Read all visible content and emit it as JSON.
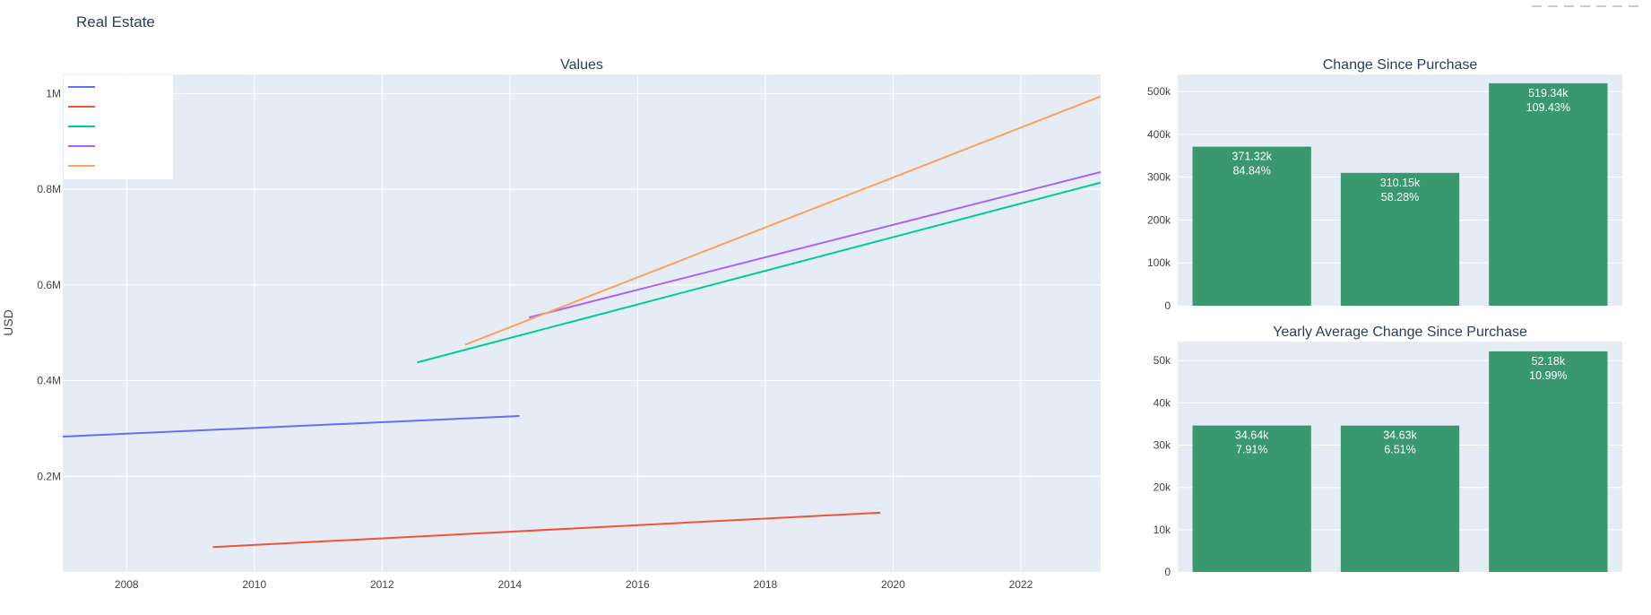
{
  "page": {
    "title": "Real Estate"
  },
  "colors": {
    "plot_bg": "#e5ecf6",
    "grid": "#ffffff",
    "bar": "#3a986f",
    "text": "#444444",
    "title": "#2a3f5f"
  },
  "chart_data": [
    {
      "type": "line",
      "title": "Values",
      "xlabel": "",
      "ylabel": "USD",
      "xlim": [
        2007.0,
        2023.25
      ],
      "ylim": [
        0,
        1040000
      ],
      "x_ticks": [
        2008,
        2010,
        2012,
        2014,
        2016,
        2018,
        2020,
        2022
      ],
      "x_tick_labels": [
        "2008",
        "2010",
        "2012",
        "2014",
        "2016",
        "2018",
        "2020",
        "2022"
      ],
      "y_ticks": [
        200000,
        400000,
        600000,
        800000,
        1000000
      ],
      "y_tick_labels": [
        "0.2M",
        "0.4M",
        "0.6M",
        "0.8M",
        "1M"
      ],
      "grid": true,
      "legend": "top-left",
      "series": [
        {
          "color": "#636efa",
          "x": [
            2007.0,
            2014.15
          ],
          "y": [
            283000,
            326000
          ]
        },
        {
          "color": "#ef553b",
          "x": [
            2009.35,
            2019.8
          ],
          "y": [
            52000,
            124000
          ]
        },
        {
          "color": "#00cc96",
          "x": [
            2012.55,
            2023.25
          ],
          "y": [
            438000,
            814000
          ]
        },
        {
          "color": "#ab63fa",
          "x": [
            2014.3,
            2023.25
          ],
          "y": [
            532000,
            836000
          ]
        },
        {
          "color": "#ffa15a",
          "x": [
            2013.3,
            2023.25
          ],
          "y": [
            475000,
            994000
          ]
        }
      ]
    },
    {
      "type": "bar",
      "title": "Change Since Purchase",
      "categories": [
        "",
        "",
        ""
      ],
      "values": [
        371320,
        310150,
        519340
      ],
      "labels": [
        [
          "371.32k",
          "84.84%"
        ],
        [
          "310.15k",
          "58.28%"
        ],
        [
          "519.34k",
          "109.43%"
        ]
      ],
      "ylim": [
        0,
        540000
      ],
      "y_ticks": [
        0,
        100000,
        200000,
        300000,
        400000,
        500000
      ],
      "y_tick_labels": [
        "0",
        "100k",
        "200k",
        "300k",
        "400k",
        "500k"
      ],
      "grid": true
    },
    {
      "type": "bar",
      "title": "Yearly Average Change Since Purchase",
      "categories": [
        "",
        "",
        ""
      ],
      "values": [
        34640,
        34630,
        52180
      ],
      "labels": [
        [
          "34.64k",
          "7.91%"
        ],
        [
          "34.63k",
          "6.51%"
        ],
        [
          "52.18k",
          "10.99%"
        ]
      ],
      "ylim": [
        0,
        54500
      ],
      "y_ticks": [
        0,
        10000,
        20000,
        30000,
        40000,
        50000
      ],
      "y_tick_labels": [
        "0",
        "10k",
        "20k",
        "30k",
        "40k",
        "50k"
      ],
      "grid": true
    }
  ]
}
